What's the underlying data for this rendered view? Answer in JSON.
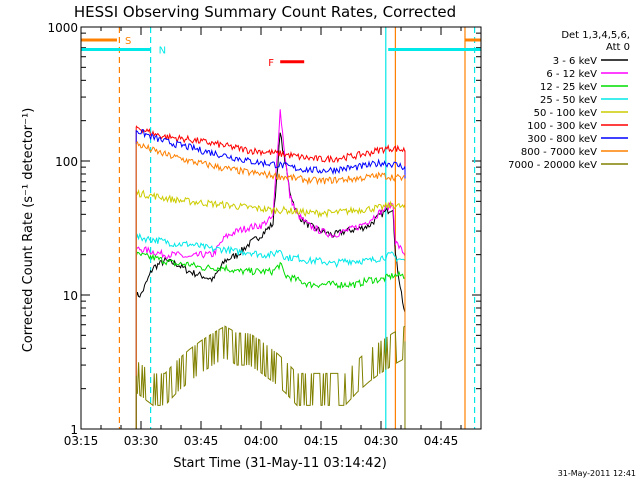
{
  "chart_data": {
    "type": "line",
    "title": "HESSI Observing Summary Count Rates, Corrected",
    "xlabel": "Start Time (31-May-11 03:14:42)",
    "ylabel": "Corrected Count Rate (s⁻¹ detector⁻¹)",
    "yscale": "log",
    "xlim": [
      3.25,
      4.9167
    ],
    "ylim": [
      1,
      1000
    ],
    "x_tick_labels": [
      {
        "t": 3.25,
        "label": "03:15"
      },
      {
        "t": 3.5,
        "label": "03:30"
      },
      {
        "t": 3.75,
        "label": "03:45"
      },
      {
        "t": 4.0,
        "label": "04:00"
      },
      {
        "t": 4.25,
        "label": "04:15"
      },
      {
        "t": 4.5,
        "label": "04:30"
      },
      {
        "t": 4.75,
        "label": "04:45"
      }
    ],
    "y_tick_labels": [
      {
        "v": 1,
        "label": "1"
      },
      {
        "v": 10,
        "label": "10"
      },
      {
        "v": 100,
        "label": "100"
      },
      {
        "v": 1000,
        "label": "1000"
      }
    ],
    "legend_header": [
      "Det 1,3,4,5,6,",
      "Att 0"
    ],
    "legend_position": "right-outside",
    "series": [
      {
        "name": "3 - 6 keV",
        "color": "#000000",
        "x": [
          3.48,
          3.5,
          3.55,
          3.6,
          3.65,
          3.7,
          3.75,
          3.8,
          3.85,
          3.9,
          3.95,
          4.0,
          4.05,
          4.08,
          4.1,
          4.12,
          4.15,
          4.2,
          4.25,
          4.3,
          4.35,
          4.4,
          4.45,
          4.5,
          4.55,
          4.56,
          4.6
        ],
        "y": [
          10,
          10,
          16,
          18,
          17,
          15,
          14,
          13,
          18,
          20,
          24,
          28,
          34,
          160,
          100,
          60,
          40,
          33,
          30,
          28,
          30,
          31,
          33,
          40,
          45,
          20,
          7
        ]
      },
      {
        "name": "6 - 12 keV",
        "color": "#ff00ff",
        "x": [
          3.48,
          3.5,
          3.55,
          3.6,
          3.65,
          3.7,
          3.75,
          3.8,
          3.85,
          3.9,
          3.95,
          4.0,
          4.05,
          4.08,
          4.1,
          4.12,
          4.15,
          4.2,
          4.25,
          4.3,
          4.35,
          4.4,
          4.45,
          4.5,
          4.55,
          4.56,
          4.6
        ],
        "y": [
          22,
          22,
          21,
          20,
          20,
          19,
          20,
          20,
          27,
          30,
          32,
          33,
          38,
          240,
          110,
          55,
          40,
          33,
          30,
          28,
          30,
          32,
          36,
          42,
          48,
          25,
          20
        ]
      },
      {
        "name": "12 - 25 keV",
        "color": "#00dd00",
        "x": [
          3.48,
          3.55,
          3.6,
          3.65,
          3.7,
          3.75,
          3.8,
          3.85,
          3.9,
          3.95,
          4.0,
          4.05,
          4.08,
          4.1,
          4.15,
          4.2,
          4.25,
          4.3,
          4.35,
          4.4,
          4.45,
          4.5,
          4.55,
          4.56,
          4.6
        ],
        "y": [
          20,
          19,
          18,
          17,
          17,
          16,
          16,
          16,
          15,
          15,
          15,
          15,
          17,
          14,
          13,
          12,
          12,
          12,
          12,
          12,
          13,
          13,
          14,
          14,
          14
        ]
      },
      {
        "name": "25 - 50 keV",
        "color": "#00e8e8",
        "x": [
          3.48,
          3.55,
          3.6,
          3.65,
          3.7,
          3.75,
          3.8,
          3.85,
          3.9,
          3.95,
          4.0,
          4.05,
          4.08,
          4.1,
          4.15,
          4.2,
          4.25,
          4.3,
          4.35,
          4.4,
          4.45,
          4.5,
          4.55,
          4.56,
          4.6
        ],
        "y": [
          27,
          26,
          25,
          24,
          24,
          23,
          22,
          22,
          21,
          21,
          20,
          20,
          22,
          19,
          19,
          18,
          18,
          17,
          18,
          18,
          18,
          19,
          20,
          19,
          18
        ]
      },
      {
        "name": "50 - 100 keV",
        "color": "#cccc00",
        "x": [
          3.48,
          3.55,
          3.6,
          3.65,
          3.7,
          3.75,
          3.8,
          3.85,
          3.9,
          3.95,
          4.0,
          4.05,
          4.1,
          4.15,
          4.2,
          4.25,
          4.3,
          4.35,
          4.4,
          4.45,
          4.5,
          4.55,
          4.6
        ],
        "y": [
          58,
          55,
          53,
          51,
          50,
          49,
          48,
          47,
          46,
          45,
          44,
          43,
          43,
          42,
          41,
          41,
          41,
          42,
          43,
          44,
          45,
          47,
          45
        ]
      },
      {
        "name": "100 - 300 keV",
        "color": "#ff0000",
        "x": [
          3.48,
          3.55,
          3.6,
          3.65,
          3.7,
          3.75,
          3.8,
          3.85,
          3.9,
          3.95,
          4.0,
          4.05,
          4.1,
          4.15,
          4.2,
          4.25,
          4.3,
          4.35,
          4.4,
          4.45,
          4.5,
          4.55,
          4.6
        ],
        "y": [
          180,
          160,
          152,
          148,
          145,
          140,
          135,
          130,
          125,
          120,
          118,
          115,
          112,
          108,
          105,
          103,
          104,
          107,
          110,
          115,
          122,
          125,
          120
        ]
      },
      {
        "name": "300 - 800 keV",
        "color": "#0000ff",
        "x": [
          3.48,
          3.55,
          3.6,
          3.65,
          3.7,
          3.75,
          3.8,
          3.85,
          3.9,
          3.95,
          4.0,
          4.05,
          4.1,
          4.15,
          4.2,
          4.25,
          4.3,
          4.35,
          4.4,
          4.45,
          4.5,
          4.55,
          4.6
        ],
        "y": [
          170,
          150,
          140,
          133,
          127,
          120,
          115,
          110,
          105,
          100,
          97,
          95,
          92,
          88,
          86,
          85,
          86,
          88,
          90,
          93,
          97,
          95,
          90
        ]
      },
      {
        "name": "800 - 7000 keV",
        "color": "#ff8000",
        "x": [
          3.48,
          3.55,
          3.6,
          3.65,
          3.7,
          3.75,
          3.8,
          3.85,
          3.9,
          3.95,
          4.0,
          4.05,
          4.1,
          4.15,
          4.2,
          4.25,
          4.3,
          4.35,
          4.4,
          4.45,
          4.5,
          4.55,
          4.6
        ],
        "y": [
          135,
          120,
          112,
          106,
          100,
          96,
          92,
          88,
          85,
          82,
          80,
          78,
          76,
          74,
          72,
          71,
          72,
          73,
          74,
          76,
          78,
          76,
          74
        ]
      },
      {
        "name": "7000 - 20000 keV",
        "color": "#808000",
        "x": [
          3.48,
          3.55,
          3.6,
          3.65,
          3.7,
          3.75,
          3.8,
          3.85,
          3.9,
          3.95,
          4.0,
          4.05,
          4.1,
          4.15,
          4.2,
          4.25,
          4.3,
          4.35,
          4.4,
          4.45,
          4.5,
          4.55,
          4.6
        ],
        "y": [
          2.5,
          2,
          2,
          2.5,
          3,
          3.5,
          4,
          4.5,
          4,
          4,
          3.5,
          3,
          2.5,
          2,
          2,
          2,
          2,
          2,
          2.5,
          3,
          3.5,
          4,
          4.5
        ]
      }
    ],
    "annotations": [
      {
        "label": "S",
        "color": "#ff8000",
        "x_range": [
          3.25,
          3.4
        ],
        "x_range_2": [
          4.85,
          4.9167
        ],
        "y": 800
      },
      {
        "label": "N",
        "color": "#00e8e8",
        "x_range": [
          3.25,
          3.54
        ],
        "x_range_2": [
          4.53,
          4.9167
        ],
        "y": 680
      },
      {
        "label": "F",
        "color": "#ff0000",
        "x_range": [
          4.08,
          4.18
        ],
        "y": 550
      }
    ],
    "vertical_lines": [
      {
        "x": 3.41,
        "color": "#ff8000",
        "style": "dashed"
      },
      {
        "x": 3.54,
        "color": "#00e8e8",
        "style": "dashed"
      },
      {
        "x": 4.52,
        "color": "#00e8e8",
        "style": "solid"
      },
      {
        "x": 4.56,
        "color": "#ff8000",
        "style": "solid"
      },
      {
        "x": 4.85,
        "color": "#ff8000",
        "style": "solid"
      },
      {
        "x": 4.89,
        "color": "#00e8e8",
        "style": "dashed"
      }
    ],
    "grid": false
  },
  "footer_timestamp": "31-May-2011 12:41"
}
